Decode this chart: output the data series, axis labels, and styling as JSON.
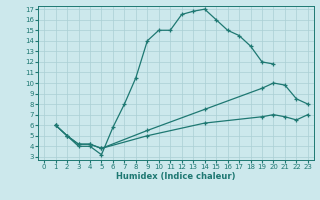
{
  "xlabel": "Humidex (Indice chaleur)",
  "bg_color": "#cce8ec",
  "line_color": "#1e7872",
  "grid_color": "#aacfd4",
  "xlim": [
    -0.5,
    23.5
  ],
  "ylim": [
    2.7,
    17.3
  ],
  "xticks": [
    0,
    1,
    2,
    3,
    4,
    5,
    6,
    7,
    8,
    9,
    10,
    11,
    12,
    13,
    14,
    15,
    16,
    17,
    18,
    19,
    20,
    21,
    22,
    23
  ],
  "yticks": [
    3,
    4,
    5,
    6,
    7,
    8,
    9,
    10,
    11,
    12,
    13,
    14,
    15,
    16,
    17
  ],
  "curve1_x": [
    1,
    2,
    3,
    4,
    5,
    6,
    7,
    8,
    9,
    10,
    11,
    12,
    13,
    14,
    15,
    16,
    17,
    18,
    19,
    20
  ],
  "curve1_y": [
    6,
    5,
    4,
    4,
    3.2,
    5.8,
    8,
    10.5,
    14,
    15,
    15,
    16.5,
    16.8,
    17,
    16,
    15,
    14.5,
    13.5,
    12,
    11.8
  ],
  "curve2_x": [
    1,
    2,
    3,
    4,
    5,
    9,
    14,
    19,
    20,
    21,
    22,
    23
  ],
  "curve2_y": [
    6,
    5,
    4.2,
    4.2,
    3.8,
    5.5,
    7.5,
    9.5,
    10,
    9.8,
    8.5,
    8.0
  ],
  "curve3_x": [
    1,
    2,
    3,
    4,
    5,
    9,
    14,
    19,
    20,
    21,
    22,
    23
  ],
  "curve3_y": [
    6,
    5,
    4.2,
    4.2,
    3.8,
    5.0,
    6.2,
    6.8,
    7.0,
    6.8,
    6.5,
    7.0
  ]
}
